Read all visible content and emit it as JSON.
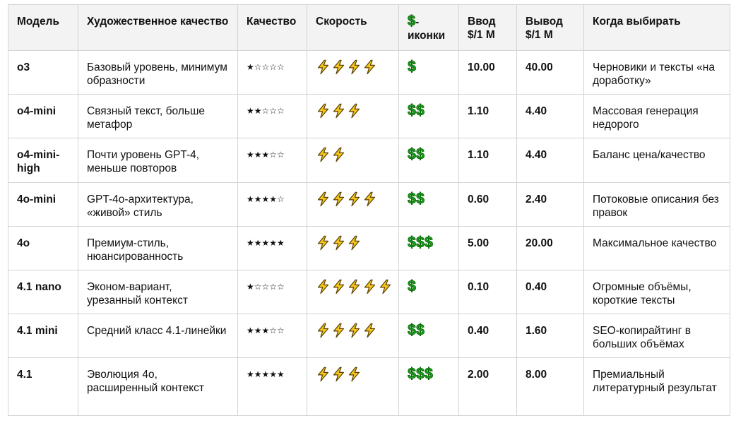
{
  "table": {
    "headers": {
      "model": "Модель",
      "art": "Художественное качество",
      "quality": "Качество",
      "speed": "Скорость",
      "icons_symbol": "$",
      "icons_text": "-иконки",
      "input": "Ввод $/1 M",
      "output": "Вывод $/1 M",
      "when": "Когда выбирать"
    },
    "rows": [
      {
        "model": "o3",
        "art": "Базовый уровень, минимум образности",
        "quality": "★☆☆☆☆",
        "speed": 4,
        "cost": 1,
        "input": "10.00",
        "output": "40.00",
        "when": "Черновики и тексты «на доработку»"
      },
      {
        "model": "o4-mini",
        "art": "Связный текст, больше метафор",
        "quality": "★★☆☆☆",
        "speed": 3,
        "cost": 2,
        "input": "1.10",
        "output": "4.40",
        "when": "Массовая генерация недорого"
      },
      {
        "model": "o4-mini-high",
        "art": "Почти уровень GPT-4, меньше повторов",
        "quality": "★★★☆☆",
        "speed": 2,
        "cost": 2,
        "input": "1.10",
        "output": "4.40",
        "when": "Баланс цена/качество"
      },
      {
        "model": "4o-mini",
        "art": "GPT-4o-архитектура, «живой» стиль",
        "quality": "★★★★☆",
        "speed": 4,
        "cost": 2,
        "input": "0.60",
        "output": "2.40",
        "when": "Потоковые описания без правок"
      },
      {
        "model": "4o",
        "art": "Премиум-стиль, нюансированность",
        "quality": "★★★★★",
        "speed": 3,
        "cost": 3,
        "input": "5.00",
        "output": "20.00",
        "when": "Максимальное качество"
      },
      {
        "model": "4.1 nano",
        "art": "Эконом-вариант, урезанный контекст",
        "quality": "★☆☆☆☆",
        "speed": 5,
        "cost": 1,
        "input": "0.10",
        "output": "0.40",
        "when": "Огромные объёмы, короткие тексты"
      },
      {
        "model": "4.1 mini",
        "art": "Средний класс 4.1-линейки",
        "quality": "★★★☆☆",
        "speed": 4,
        "cost": 2,
        "input": "0.40",
        "output": "1.60",
        "when": "SEO-копирайтинг в больших объёмах"
      },
      {
        "model": "4.1",
        "art": "Эволюция 4o, расширенный контекст",
        "quality": "★★★★★",
        "speed": 3,
        "cost": 3,
        "input": "2.00",
        "output": "8.00",
        "when": "Премиальный литературный результат"
      }
    ]
  },
  "icons": {
    "speed": "lightning-icon",
    "cost": "dollar-icon"
  },
  "colors": {
    "header_bg": "#f3f3f3",
    "border": "#d4d4d4",
    "bolt_fill": "#f7c51c",
    "bolt_stroke": "#5a4200",
    "dollar": "#1fa31f"
  }
}
